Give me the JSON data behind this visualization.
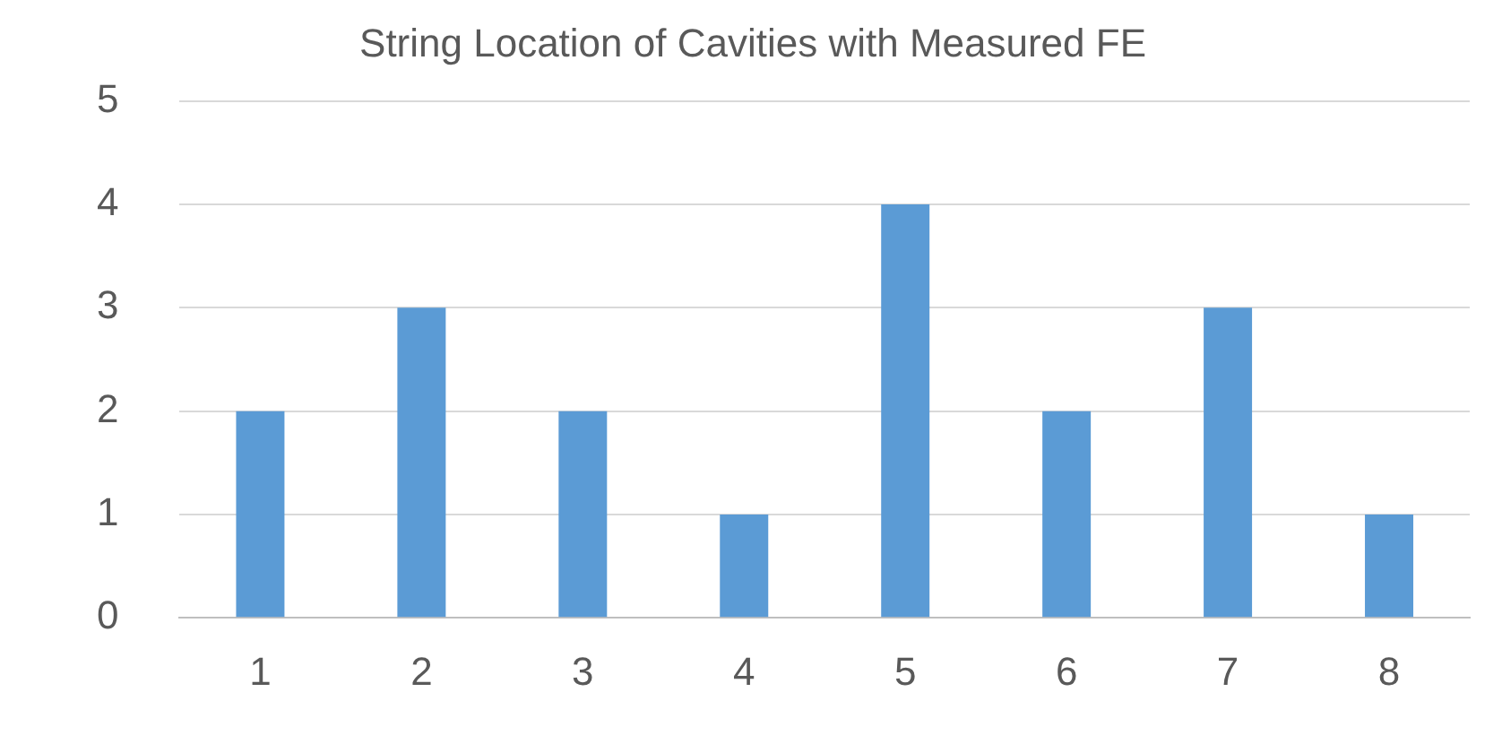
{
  "chart_data": {
    "type": "bar",
    "title": "String Location of Cavities with Measured FE",
    "categories": [
      "1",
      "2",
      "3",
      "4",
      "5",
      "6",
      "7",
      "8"
    ],
    "values": [
      2,
      3,
      2,
      1,
      4,
      2,
      3,
      1
    ],
    "color": "#5b9bd5",
    "ylim": [
      0,
      5
    ],
    "yticks": [
      0,
      1,
      2,
      3,
      4,
      5
    ],
    "grid": "y"
  }
}
